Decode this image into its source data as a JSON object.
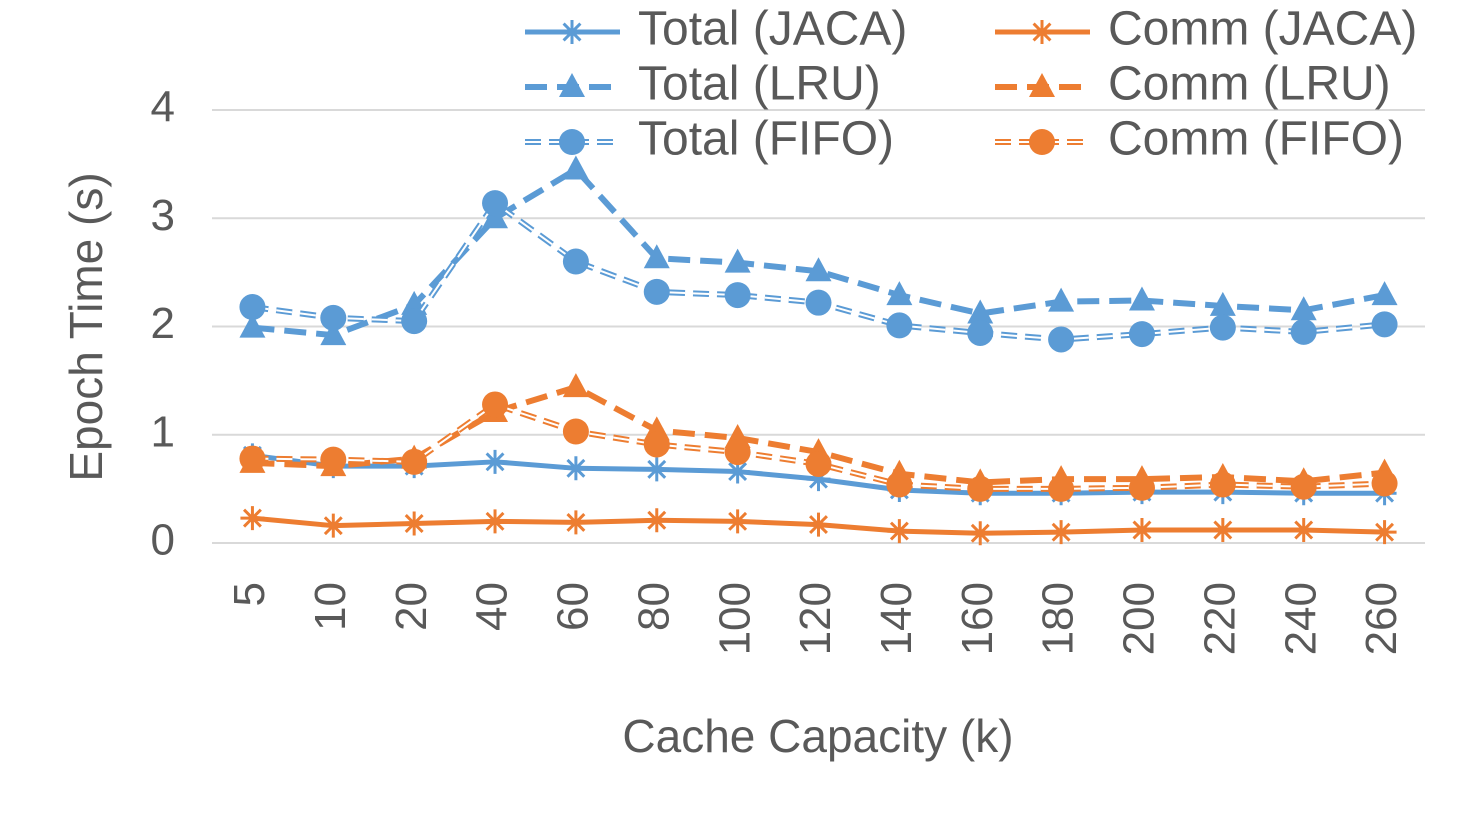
{
  "chart_data": {
    "type": "line",
    "x_label": "Cache Capacity (k)",
    "y_label": "Epoch Time (s)",
    "categories": [
      "5",
      "10",
      "20",
      "40",
      "60",
      "80",
      "100",
      "120",
      "140",
      "160",
      "180",
      "200",
      "220",
      "240",
      "260"
    ],
    "ylim": [
      0,
      4
    ],
    "yticks": [
      0,
      1,
      2,
      3,
      4
    ],
    "grid": true,
    "legend": "top-right",
    "series": [
      {
        "name": "Total (JACA)",
        "color": "#5b9bd5",
        "dash": "solid",
        "marker": "asterisk",
        "values": [
          0.81,
          0.71,
          0.71,
          0.75,
          0.69,
          0.68,
          0.66,
          0.59,
          0.49,
          0.46,
          0.46,
          0.47,
          0.47,
          0.46,
          0.46
        ]
      },
      {
        "name": "Comm (JACA)",
        "color": "#ed7d31",
        "dash": "solid",
        "marker": "asterisk",
        "values": [
          0.23,
          0.16,
          0.18,
          0.2,
          0.19,
          0.21,
          0.2,
          0.17,
          0.11,
          0.09,
          0.1,
          0.12,
          0.12,
          0.12,
          0.1
        ]
      },
      {
        "name": "Total (LRU)",
        "color": "#5b9bd5",
        "dash": "dashed",
        "marker": "triangle",
        "values": [
          1.99,
          1.92,
          2.2,
          3.0,
          3.45,
          2.63,
          2.59,
          2.51,
          2.29,
          2.12,
          2.23,
          2.24,
          2.19,
          2.15,
          2.29
        ]
      },
      {
        "name": "Comm (LRU)",
        "color": "#ed7d31",
        "dash": "dashed",
        "marker": "triangle",
        "values": [
          0.74,
          0.71,
          0.78,
          1.21,
          1.44,
          1.04,
          0.97,
          0.84,
          0.64,
          0.56,
          0.59,
          0.59,
          0.61,
          0.57,
          0.65
        ]
      },
      {
        "name": "Total (FIFO)",
        "color": "#5b9bd5",
        "dash": "outline",
        "marker": "circle",
        "values": [
          2.18,
          2.08,
          2.05,
          3.14,
          2.6,
          2.32,
          2.29,
          2.22,
          2.01,
          1.94,
          1.88,
          1.93,
          1.99,
          1.95,
          2.02
        ]
      },
      {
        "name": "Comm (FIFO)",
        "color": "#ed7d31",
        "dash": "outline",
        "marker": "circle",
        "values": [
          0.78,
          0.77,
          0.75,
          1.28,
          1.03,
          0.91,
          0.84,
          0.73,
          0.54,
          0.5,
          0.5,
          0.51,
          0.54,
          0.52,
          0.55
        ]
      }
    ]
  }
}
